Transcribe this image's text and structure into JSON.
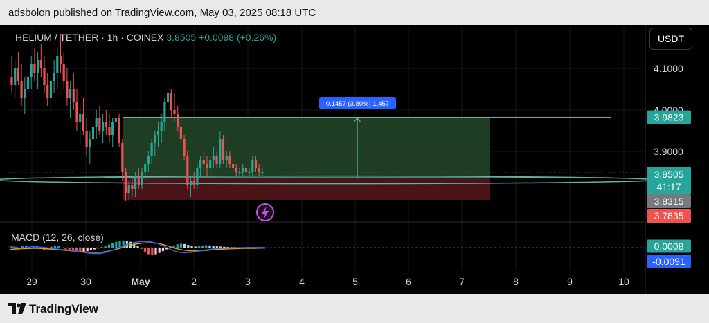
{
  "attribution": "adsbolon published on TradingView.com, May 03, 2025 08:18 UTC",
  "footer_brand": "TradingView",
  "header": {
    "symbol": "HELIUM / TETHER · 1h · COINEX",
    "last": "3.8505",
    "change": "+0.0098 (+0.26%)"
  },
  "currency_button": "USDT",
  "colors": {
    "up": "#26a69a",
    "down": "#ef5350",
    "profit_zone": "#1e3d22",
    "loss_zone": "#4a1419",
    "tag_blue": "#2962ff"
  },
  "chart_data": [
    {
      "type": "candlestick",
      "title": "HELIUM / TETHER · 1h · COINEX",
      "y_ticks": [
        "4.1000",
        "4.0000",
        "3.9000"
      ],
      "ylim": [
        3.755,
        4.18
      ],
      "x_ticks": [
        "29",
        "30",
        "May",
        "2",
        "3",
        "4",
        "5",
        "6",
        "7",
        "8",
        "9",
        "10"
      ],
      "price_labels": {
        "target": "3.9823",
        "last": "3.8505",
        "countdown": "41:17",
        "level": "3.8315",
        "stop": "3.7835"
      },
      "long_position": {
        "entry": 3.8366,
        "target": 3.9823,
        "stop": 3.7835,
        "label": "0.1457 (3.80%) 1,457"
      },
      "candles_ohlc": [
        [
          4.08,
          4.13,
          4.04,
          4.06
        ],
        [
          4.06,
          4.12,
          4.03,
          4.1
        ],
        [
          4.1,
          4.14,
          4.06,
          4.07
        ],
        [
          4.07,
          4.11,
          4.01,
          4.03
        ],
        [
          4.03,
          4.08,
          3.99,
          4.05
        ],
        [
          4.05,
          4.1,
          4.02,
          4.08
        ],
        [
          4.08,
          4.13,
          4.05,
          4.11
        ],
        [
          4.11,
          4.15,
          4.07,
          4.09
        ],
        [
          4.09,
          4.14,
          4.05,
          4.12
        ],
        [
          4.12,
          4.16,
          4.08,
          4.1
        ],
        [
          4.1,
          4.13,
          4.04,
          4.06
        ],
        [
          4.06,
          4.09,
          4.01,
          4.03
        ],
        [
          4.03,
          4.08,
          3.99,
          4.07
        ],
        [
          4.07,
          4.12,
          4.04,
          4.09
        ],
        [
          4.09,
          4.15,
          4.05,
          4.13
        ],
        [
          4.13,
          4.18,
          4.09,
          4.11
        ],
        [
          4.11,
          4.14,
          4.05,
          4.07
        ],
        [
          4.07,
          4.1,
          4.01,
          4.03
        ],
        [
          4.03,
          4.07,
          3.98,
          4.05
        ],
        [
          4.05,
          4.09,
          4.0,
          4.02
        ],
        [
          4.02,
          4.05,
          3.95,
          3.97
        ],
        [
          3.97,
          4.01,
          3.92,
          3.99
        ],
        [
          3.99,
          4.03,
          3.94,
          3.95
        ],
        [
          3.95,
          3.98,
          3.89,
          3.91
        ],
        [
          3.91,
          3.95,
          3.87,
          3.93
        ],
        [
          3.93,
          3.98,
          3.9,
          3.96
        ],
        [
          3.96,
          4.0,
          3.93,
          3.98
        ],
        [
          3.98,
          4.01,
          3.94,
          3.95
        ],
        [
          3.95,
          3.99,
          3.92,
          3.97
        ],
        [
          3.97,
          4.0,
          3.94,
          3.96
        ],
        [
          3.96,
          3.99,
          3.92,
          3.94
        ],
        [
          3.94,
          3.98,
          3.91,
          3.97
        ],
        [
          3.97,
          4.0,
          3.95,
          3.98
        ],
        [
          3.98,
          3.99,
          3.91,
          3.92
        ],
        [
          3.92,
          3.93,
          3.83,
          3.85
        ],
        [
          3.85,
          3.86,
          3.78,
          3.8
        ],
        [
          3.8,
          3.83,
          3.78,
          3.82
        ],
        [
          3.82,
          3.84,
          3.79,
          3.81
        ],
        [
          3.81,
          3.85,
          3.79,
          3.84
        ],
        [
          3.84,
          3.86,
          3.81,
          3.82
        ],
        [
          3.82,
          3.86,
          3.81,
          3.85
        ],
        [
          3.85,
          3.88,
          3.83,
          3.87
        ],
        [
          3.87,
          3.9,
          3.85,
          3.89
        ],
        [
          3.89,
          3.93,
          3.87,
          3.92
        ],
        [
          3.92,
          3.95,
          3.89,
          3.94
        ],
        [
          3.94,
          3.97,
          3.91,
          3.95
        ],
        [
          3.95,
          3.99,
          3.92,
          3.97
        ],
        [
          3.97,
          4.03,
          3.95,
          4.02
        ],
        [
          4.02,
          4.06,
          3.99,
          4.04
        ],
        [
          4.04,
          4.05,
          3.98,
          4.0
        ],
        [
          4.0,
          4.04,
          3.97,
          3.99
        ],
        [
          3.99,
          4.01,
          3.95,
          3.96
        ],
        [
          3.96,
          3.98,
          3.92,
          3.93
        ],
        [
          3.93,
          3.94,
          3.88,
          3.89
        ],
        [
          3.89,
          3.9,
          3.81,
          3.82
        ],
        [
          3.82,
          3.84,
          3.79,
          3.83
        ],
        [
          3.83,
          3.85,
          3.81,
          3.82
        ],
        [
          3.82,
          3.87,
          3.81,
          3.86
        ],
        [
          3.86,
          3.89,
          3.84,
          3.88
        ],
        [
          3.88,
          3.9,
          3.85,
          3.87
        ],
        [
          3.87,
          3.89,
          3.84,
          3.86
        ],
        [
          3.86,
          3.89,
          3.85,
          3.88
        ],
        [
          3.88,
          3.91,
          3.86,
          3.89
        ],
        [
          3.89,
          3.9,
          3.86,
          3.87
        ],
        [
          3.87,
          3.95,
          3.86,
          3.93
        ],
        [
          3.93,
          3.94,
          3.87,
          3.88
        ],
        [
          3.88,
          3.9,
          3.86,
          3.89
        ],
        [
          3.89,
          3.9,
          3.86,
          3.87
        ],
        [
          3.87,
          3.88,
          3.85,
          3.86
        ],
        [
          3.86,
          3.87,
          3.84,
          3.85
        ],
        [
          3.85,
          3.86,
          3.84,
          3.85
        ],
        [
          3.85,
          3.87,
          3.84,
          3.86
        ],
        [
          3.86,
          3.86,
          3.84,
          3.85
        ],
        [
          3.85,
          3.86,
          3.84,
          3.85
        ],
        [
          3.85,
          3.89,
          3.84,
          3.88
        ],
        [
          3.88,
          3.89,
          3.85,
          3.86
        ],
        [
          3.86,
          3.87,
          3.84,
          3.85
        ],
        [
          3.85,
          3.86,
          3.84,
          3.85
        ]
      ]
    },
    {
      "type": "macd",
      "title": "MACD (12, 26, close)",
      "values": {
        "macd": "0.0008",
        "signal": "-0.0091"
      }
    }
  ]
}
